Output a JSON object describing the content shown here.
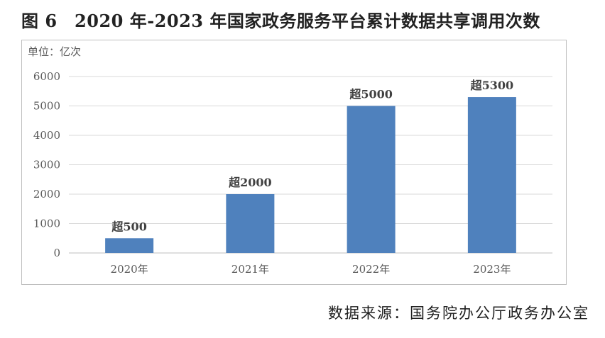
{
  "figure": {
    "title": "图 6　2020 年-2023 年国家政务服务平台累计数据共享调用次数",
    "unit": "单位：亿次",
    "source": "数据来源：国务院办公厅政务办公室"
  },
  "chart_data": {
    "type": "bar",
    "title": "2020 年-2023 年国家政务服务平台累计数据共享调用次数",
    "categories": [
      "2020年",
      "2021年",
      "2022年",
      "2023年"
    ],
    "values": [
      500,
      2000,
      5000,
      5300
    ],
    "data_labels": [
      "超500",
      "超2000",
      "超5000",
      "超5300"
    ],
    "ylabel": "单位：亿次",
    "ylim": [
      0,
      6000
    ],
    "yticks": [
      0,
      1000,
      2000,
      3000,
      4000,
      5000,
      6000
    ],
    "grid": true,
    "legend": "none",
    "bar_color": "#4f81bd",
    "grid_color": "#d9d9d9"
  }
}
